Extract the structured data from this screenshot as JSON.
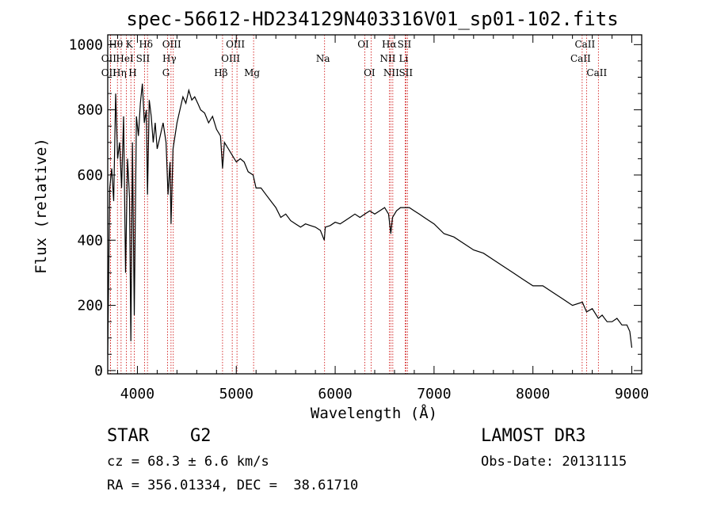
{
  "chart_data": {
    "type": "line",
    "title": "spec-56612-HD234129N403316V01_sp01-102.fits",
    "xlabel": "Wavelength (Å)",
    "ylabel": "Flux (relative)",
    "xlim": [
      3700,
      9100
    ],
    "ylim": [
      -10,
      1030
    ],
    "xticks": [
      4000,
      5000,
      6000,
      7000,
      8000,
      9000
    ],
    "yticks": [
      0,
      200,
      400,
      600,
      800,
      1000
    ],
    "grid": false,
    "series": [
      {
        "x": [
          3700,
          3720,
          3740,
          3760,
          3780,
          3800,
          3820,
          3840,
          3860,
          3880,
          3900,
          3920,
          3934,
          3950,
          3968,
          3990,
          4010,
          4030,
          4050,
          4070,
          4090,
          4102,
          4120,
          4140,
          4160,
          4180,
          4200,
          4230,
          4260,
          4290,
          4310,
          4330,
          4340,
          4360,
          4380,
          4400,
          4430,
          4460,
          4490,
          4520,
          4550,
          4580,
          4610,
          4640,
          4680,
          4720,
          4760,
          4800,
          4840,
          4861,
          4880,
          4920,
          4960,
          5000,
          5040,
          5080,
          5120,
          5170,
          5200,
          5250,
          5300,
          5350,
          5400,
          5450,
          5500,
          5550,
          5600,
          5650,
          5700,
          5750,
          5800,
          5850,
          5890,
          5900,
          5950,
          6000,
          6050,
          6100,
          6150,
          6200,
          6250,
          6300,
          6350,
          6400,
          6450,
          6500,
          6540,
          6563,
          6580,
          6620,
          6660,
          6700,
          6750,
          6800,
          6850,
          6900,
          6950,
          7000,
          7100,
          7200,
          7300,
          7400,
          7500,
          7600,
          7700,
          7800,
          7900,
          8000,
          8100,
          8200,
          8300,
          8400,
          8500,
          8542,
          8600,
          8662,
          8700,
          8750,
          8800,
          8850,
          8900,
          8950,
          8980,
          9000
        ],
        "y": [
          50,
          560,
          620,
          520,
          850,
          650,
          700,
          560,
          780,
          300,
          650,
          530,
          90,
          700,
          170,
          780,
          720,
          820,
          880,
          760,
          800,
          540,
          830,
          780,
          700,
          760,
          680,
          720,
          760,
          700,
          540,
          640,
          450,
          680,
          720,
          760,
          800,
          840,
          820,
          860,
          830,
          840,
          820,
          800,
          790,
          760,
          780,
          740,
          720,
          620,
          700,
          680,
          660,
          640,
          650,
          640,
          610,
          600,
          560,
          560,
          540,
          520,
          500,
          470,
          480,
          460,
          450,
          440,
          450,
          445,
          440,
          430,
          400,
          440,
          445,
          455,
          450,
          460,
          470,
          480,
          470,
          480,
          490,
          480,
          490,
          500,
          480,
          420,
          470,
          490,
          500,
          500,
          500,
          490,
          480,
          470,
          460,
          450,
          420,
          410,
          390,
          370,
          360,
          340,
          320,
          300,
          280,
          260,
          260,
          240,
          220,
          200,
          210,
          180,
          190,
          160,
          170,
          150,
          150,
          160,
          140,
          140,
          120,
          70
        ]
      }
    ],
    "line_ids": [
      {
        "name": "Hθ",
        "wave": 3798,
        "row": 1
      },
      {
        "name": "OII",
        "wave": 3727,
        "row": 2
      },
      {
        "name": "OII",
        "wave": 3727,
        "row": 3
      },
      {
        "name": "Hη",
        "wave": 3835,
        "row": 3
      },
      {
        "name": "HeI",
        "wave": 3889,
        "row": 2
      },
      {
        "name": "K",
        "wave": 3934,
        "row": 1
      },
      {
        "name": "SII",
        "wave": 4072,
        "row": 2
      },
      {
        "name": "H",
        "wave": 3968,
        "row": 3
      },
      {
        "name": "Hδ",
        "wave": 4102,
        "row": 1
      },
      {
        "name": "OIII",
        "wave": 4363,
        "row": 1
      },
      {
        "name": "Hγ",
        "wave": 4340,
        "row": 2
      },
      {
        "name": "G",
        "wave": 4305,
        "row": 3
      },
      {
        "name": "Hβ",
        "wave": 4861,
        "row": 3
      },
      {
        "name": "OIII",
        "wave": 5007,
        "row": 1
      },
      {
        "name": "OIII",
        "wave": 4959,
        "row": 2
      },
      {
        "name": "Mg",
        "wave": 5175,
        "row": 3
      },
      {
        "name": "Na",
        "wave": 5893,
        "row": 2
      },
      {
        "name": "OI",
        "wave": 6300,
        "row": 1
      },
      {
        "name": "OI",
        "wave": 6363,
        "row": 3
      },
      {
        "name": "Hα",
        "wave": 6563,
        "row": 1
      },
      {
        "name": "NII",
        "wave": 6548,
        "row": 2
      },
      {
        "name": "NII",
        "wave": 6583,
        "row": 3
      },
      {
        "name": "SII",
        "wave": 6716,
        "row": 1
      },
      {
        "name": "Li",
        "wave": 6708,
        "row": 2
      },
      {
        "name": "SII",
        "wave": 6731,
        "row": 3
      },
      {
        "name": "CaII",
        "wave": 8542,
        "row": 1
      },
      {
        "name": "CaII",
        "wave": 8498,
        "row": 2
      },
      {
        "name": "CaII",
        "wave": 8662,
        "row": 3
      }
    ],
    "line_color": "#cc0000"
  },
  "info": {
    "class_label": "STAR",
    "subclass": "G2",
    "survey": "LAMOST DR3",
    "cz": "cz = 68.3 ± 6.6 km/s",
    "obs_date": "Obs-Date: 20131115",
    "coords": "RA = 356.01334, DEC =  38.61710"
  }
}
